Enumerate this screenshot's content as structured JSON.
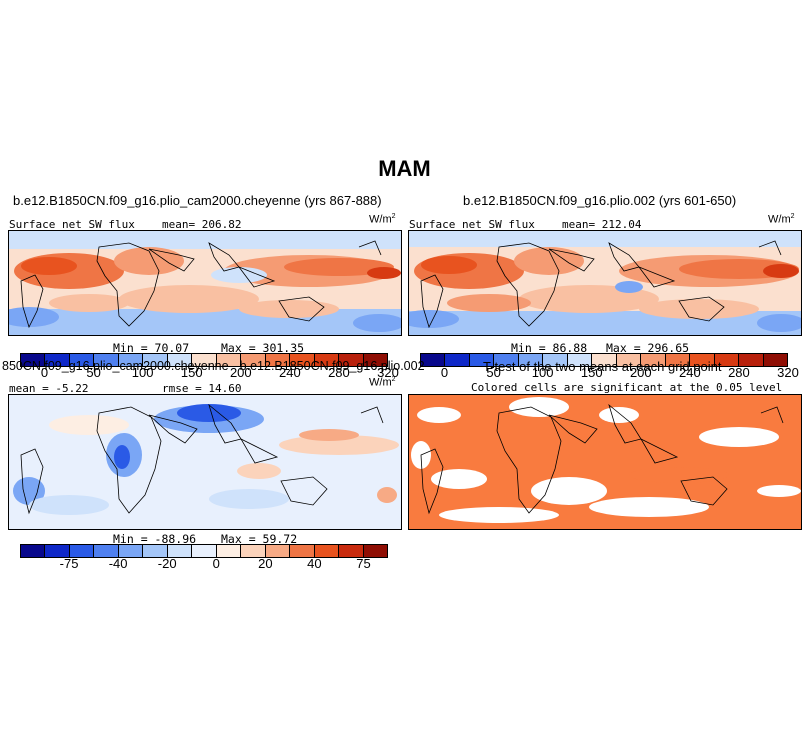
{
  "figure": {
    "title": "MAM"
  },
  "chart_data": [
    {
      "type": "heatmap",
      "panel": "top-left",
      "case_title": "b.e12.B1850CN.f09_g16.plio_cam2000.cheyenne (yrs 867-888)",
      "variable": "Surface net SW flux",
      "mean_text": "mean= 206.82",
      "units": "W/m",
      "units_exp": "2",
      "min_text": "Min =  70.07",
      "max_text": "Max = 301.35",
      "min": 70.07,
      "max": 301.35,
      "mean": 206.82,
      "colorbar": {
        "levels": [
          "0",
          "50",
          "100",
          "150",
          "200",
          "240",
          "280",
          "320"
        ],
        "colors": [
          "#08088c",
          "#0f28c8",
          "#2a5ae6",
          "#4f80f0",
          "#7aa6f5",
          "#a4c6f8",
          "#cfe2fb",
          "#fbe0cf",
          "#f9c0a2",
          "#f59b73",
          "#ef7545",
          "#e8531f",
          "#d73a12",
          "#b8200b",
          "#8f0e04"
        ]
      }
    },
    {
      "type": "heatmap",
      "panel": "top-right",
      "case_title": "b.e12.B1850CN.f09_g16.plio.002 (yrs 601-650)",
      "variable": "Surface net SW flux",
      "mean_text": "mean= 212.04",
      "units": "W/m",
      "units_exp": "2",
      "min_text": "Min =  86.88",
      "max_text": "Max = 296.65",
      "min": 86.88,
      "max": 296.65,
      "mean": 212.04,
      "colorbar": {
        "levels": [
          "0",
          "50",
          "100",
          "150",
          "200",
          "240",
          "280",
          "320"
        ],
        "colors": [
          "#08088c",
          "#0f28c8",
          "#2a5ae6",
          "#4f80f0",
          "#7aa6f5",
          "#a4c6f8",
          "#cfe2fb",
          "#fbe0cf",
          "#f9c0a2",
          "#f59b73",
          "#ef7545",
          "#e8531f",
          "#d73a12",
          "#b8200b",
          "#8f0e04"
        ]
      }
    },
    {
      "type": "heatmap",
      "panel": "bottom-left",
      "case_title": "850CN.f09_g16.plio_cam2000.cheyenne - b.e12.B1850CN.f09_g16.plio.002",
      "mean_text": "mean =  -5.22",
      "rmse_text": "rmse =  14.60",
      "units": "W/m",
      "units_exp": "2",
      "min_text": "Min = -88.96",
      "max_text": "Max =  59.72",
      "min": -88.96,
      "max": 59.72,
      "mean": -5.22,
      "rmse": 14.6,
      "colorbar": {
        "levels": [
          "-75",
          "-40",
          "-20",
          "0",
          "20",
          "40",
          "75"
        ],
        "colors": [
          "#08088c",
          "#0f28c8",
          "#2a5ae6",
          "#4f80f0",
          "#7aa6f5",
          "#a4c6f8",
          "#cfe2fb",
          "#e8f0fd",
          "#fdeee3",
          "#fbd3bb",
          "#f7aa85",
          "#ef7545",
          "#e8531f",
          "#c92b0e",
          "#8f0e04"
        ]
      }
    },
    {
      "type": "heatmap",
      "panel": "bottom-right",
      "case_title": "T-test of the two means at each grid point",
      "subtitle": "Colored cells are significant at the 0.05 level",
      "colors": {
        "significant": "#f97b3f",
        "not_significant": "#ffffff"
      }
    }
  ]
}
